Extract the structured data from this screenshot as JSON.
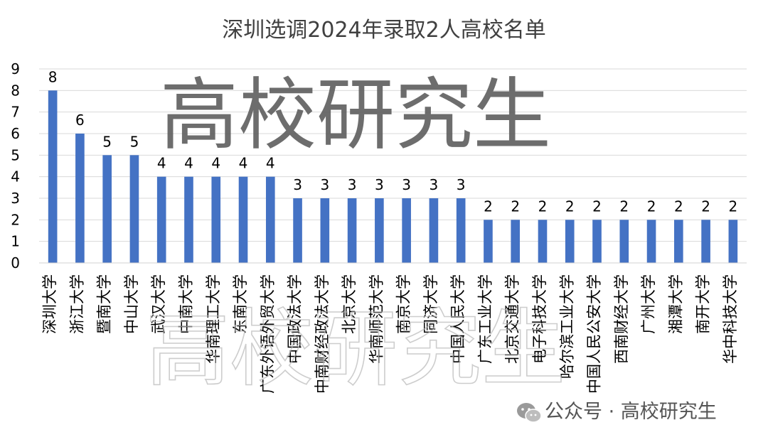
{
  "chart_data": {
    "type": "bar",
    "title": "深圳选调2024年录取2人高校名单",
    "categories": [
      "深圳大学",
      "浙江大学",
      "暨南大学",
      "中山大学",
      "武汉大学",
      "中南大学",
      "华南理工大学",
      "东南大学",
      "广东外语外贸大学",
      "中国政法大学",
      "中南财经政法大学",
      "北京大学",
      "华南师范大学",
      "南京大学",
      "同济大学",
      "中国人民大学",
      "广东工业大学",
      "北京交通大学",
      "电子科技大学",
      "哈尔滨工业大学",
      "中国人民公安大学",
      "西南财经大学",
      "广州大学",
      "湘潭大学",
      "南开大学",
      "华中科技大学"
    ],
    "values": [
      8,
      6,
      5,
      5,
      4,
      4,
      4,
      4,
      4,
      3,
      3,
      3,
      3,
      3,
      3,
      3,
      2,
      2,
      2,
      2,
      2,
      2,
      2,
      2,
      2,
      2
    ],
    "ylim": [
      0,
      9
    ],
    "yticks": [
      0,
      1,
      2,
      3,
      4,
      5,
      6,
      7,
      8,
      9
    ],
    "grid": true,
    "bar_color": "#4472C4",
    "data_labels": true
  },
  "watermark": {
    "main": "高校研究生",
    "ghost": "高校研究生"
  },
  "footer": {
    "source": "公众号 · 高校研究生",
    "icon": "wechat-icon"
  }
}
